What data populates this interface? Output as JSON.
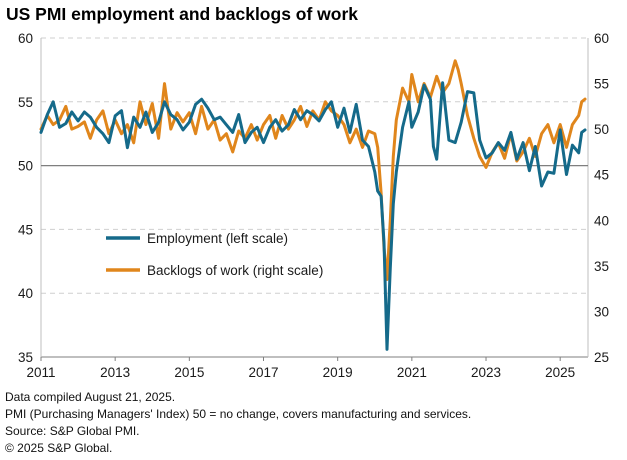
{
  "title": "US PMI employment and backlogs of work",
  "notes": [
    "Data compiled August 21, 2025.",
    "PMI (Purchasing Managers' Index) 50 =  no change, covers manufacturing and services.",
    "Source: S&P Global PMI.",
    "© 2025 S&P Global."
  ],
  "colors": {
    "employment": "#156a8a",
    "backlogs": "#e0861c",
    "grid": "#cfcfcf",
    "refline": "#7f7f7f"
  },
  "chart_data": {
    "type": "line",
    "title": "US PMI employment and backlogs of work",
    "x_ticks": [
      "2011",
      "2013",
      "2015",
      "2017",
      "2019",
      "2021",
      "2023",
      "2025"
    ],
    "xlim": [
      2011.0,
      2025.75
    ],
    "y_left": {
      "min": 35,
      "max": 60,
      "ticks": [
        35,
        40,
        45,
        50,
        55,
        60
      ]
    },
    "y_right": {
      "min": 25,
      "max": 60,
      "ticks": [
        25,
        30,
        35,
        40,
        45,
        50,
        55,
        60
      ]
    },
    "reference_line": {
      "axis": "left",
      "value": 50
    },
    "grid": "horizontal dashed",
    "legend_position": "middle-left",
    "series": [
      {
        "name": "Employment (left scale)",
        "axis": "left",
        "points": [
          [
            2011.0,
            52.6
          ],
          [
            2011.17,
            54.0
          ],
          [
            2011.33,
            55.0
          ],
          [
            2011.5,
            53.0
          ],
          [
            2011.67,
            53.3
          ],
          [
            2011.83,
            54.2
          ],
          [
            2012.0,
            53.5
          ],
          [
            2012.17,
            54.2
          ],
          [
            2012.33,
            53.8
          ],
          [
            2012.5,
            53.0
          ],
          [
            2012.67,
            52.5
          ],
          [
            2012.83,
            51.8
          ],
          [
            2013.0,
            53.9
          ],
          [
            2013.17,
            54.3
          ],
          [
            2013.33,
            51.4
          ],
          [
            2013.5,
            53.8
          ],
          [
            2013.67,
            53.0
          ],
          [
            2013.83,
            54.2
          ],
          [
            2014.0,
            52.6
          ],
          [
            2014.17,
            53.4
          ],
          [
            2014.33,
            55.0
          ],
          [
            2014.5,
            54.0
          ],
          [
            2014.67,
            53.6
          ],
          [
            2014.83,
            52.8
          ],
          [
            2015.0,
            53.4
          ],
          [
            2015.17,
            54.8
          ],
          [
            2015.33,
            55.2
          ],
          [
            2015.5,
            54.5
          ],
          [
            2015.67,
            53.6
          ],
          [
            2015.83,
            53.8
          ],
          [
            2016.0,
            53.2
          ],
          [
            2016.17,
            52.6
          ],
          [
            2016.33,
            54.0
          ],
          [
            2016.5,
            51.8
          ],
          [
            2016.67,
            52.6
          ],
          [
            2016.83,
            53.0
          ],
          [
            2017.0,
            51.8
          ],
          [
            2017.17,
            53.0
          ],
          [
            2017.33,
            53.6
          ],
          [
            2017.5,
            52.7
          ],
          [
            2017.67,
            53.2
          ],
          [
            2017.83,
            54.4
          ],
          [
            2018.0,
            53.6
          ],
          [
            2018.17,
            54.3
          ],
          [
            2018.33,
            54.0
          ],
          [
            2018.5,
            53.5
          ],
          [
            2018.67,
            54.4
          ],
          [
            2018.83,
            55.0
          ],
          [
            2019.0,
            53.0
          ],
          [
            2019.17,
            54.5
          ],
          [
            2019.33,
            52.6
          ],
          [
            2019.5,
            54.8
          ],
          [
            2019.67,
            52.0
          ],
          [
            2019.83,
            51.5
          ],
          [
            2020.0,
            49.5
          ],
          [
            2020.08,
            48.0
          ],
          [
            2020.17,
            47.6
          ],
          [
            2020.25,
            44.0
          ],
          [
            2020.33,
            35.6
          ],
          [
            2020.42,
            42.0
          ],
          [
            2020.5,
            47.0
          ],
          [
            2020.58,
            49.5
          ],
          [
            2020.75,
            53.0
          ],
          [
            2020.92,
            55.0
          ],
          [
            2021.0,
            53.0
          ],
          [
            2021.17,
            54.2
          ],
          [
            2021.33,
            56.3
          ],
          [
            2021.5,
            55.2
          ],
          [
            2021.58,
            51.5
          ],
          [
            2021.67,
            50.5
          ],
          [
            2021.83,
            56.5
          ],
          [
            2022.0,
            52.0
          ],
          [
            2022.17,
            51.8
          ],
          [
            2022.33,
            53.4
          ],
          [
            2022.5,
            55.8
          ],
          [
            2022.67,
            55.7
          ],
          [
            2022.83,
            52.0
          ],
          [
            2023.0,
            50.6
          ],
          [
            2023.17,
            51.0
          ],
          [
            2023.33,
            51.8
          ],
          [
            2023.5,
            51.2
          ],
          [
            2023.67,
            52.6
          ],
          [
            2023.83,
            50.5
          ],
          [
            2024.0,
            51.8
          ],
          [
            2024.17,
            49.6
          ],
          [
            2024.33,
            51.5
          ],
          [
            2024.5,
            48.4
          ],
          [
            2024.67,
            49.5
          ],
          [
            2024.83,
            49.4
          ],
          [
            2025.0,
            52.8
          ],
          [
            2025.17,
            49.3
          ],
          [
            2025.33,
            51.6
          ],
          [
            2025.5,
            51.0
          ],
          [
            2025.58,
            52.6
          ],
          [
            2025.67,
            52.8
          ]
        ]
      },
      {
        "name": "Backlogs of work (right scale)",
        "axis": "right",
        "points": [
          [
            2011.0,
            50.0
          ],
          [
            2011.17,
            51.5
          ],
          [
            2011.33,
            50.5
          ],
          [
            2011.5,
            51.0
          ],
          [
            2011.67,
            52.5
          ],
          [
            2011.83,
            50.0
          ],
          [
            2012.0,
            50.3
          ],
          [
            2012.17,
            50.8
          ],
          [
            2012.33,
            49.0
          ],
          [
            2012.5,
            51.0
          ],
          [
            2012.67,
            52.0
          ],
          [
            2012.83,
            49.5
          ],
          [
            2013.0,
            51.0
          ],
          [
            2013.17,
            49.5
          ],
          [
            2013.33,
            50.5
          ],
          [
            2013.5,
            48.5
          ],
          [
            2013.67,
            53.0
          ],
          [
            2013.83,
            50.5
          ],
          [
            2014.0,
            52.8
          ],
          [
            2014.17,
            49.0
          ],
          [
            2014.33,
            55.0
          ],
          [
            2014.5,
            50.0
          ],
          [
            2014.67,
            51.8
          ],
          [
            2014.83,
            50.8
          ],
          [
            2015.0,
            51.8
          ],
          [
            2015.17,
            49.5
          ],
          [
            2015.33,
            52.5
          ],
          [
            2015.5,
            50.0
          ],
          [
            2015.67,
            51.0
          ],
          [
            2015.83,
            48.8
          ],
          [
            2016.0,
            49.5
          ],
          [
            2016.17,
            47.5
          ],
          [
            2016.33,
            49.8
          ],
          [
            2016.5,
            49.0
          ],
          [
            2016.67,
            50.5
          ],
          [
            2016.83,
            48.8
          ],
          [
            2017.0,
            50.5
          ],
          [
            2017.17,
            51.5
          ],
          [
            2017.33,
            49.0
          ],
          [
            2017.5,
            51.5
          ],
          [
            2017.67,
            50.0
          ],
          [
            2017.83,
            51.0
          ],
          [
            2018.0,
            52.5
          ],
          [
            2018.17,
            50.3
          ],
          [
            2018.33,
            52.0
          ],
          [
            2018.5,
            51.0
          ],
          [
            2018.67,
            53.0
          ],
          [
            2018.83,
            52.0
          ],
          [
            2019.0,
            51.5
          ],
          [
            2019.17,
            50.5
          ],
          [
            2019.33,
            48.5
          ],
          [
            2019.5,
            50.0
          ],
          [
            2019.67,
            48.0
          ],
          [
            2019.83,
            49.8
          ],
          [
            2020.0,
            49.5
          ],
          [
            2020.08,
            48.0
          ],
          [
            2020.17,
            43.0
          ],
          [
            2020.25,
            37.0
          ],
          [
            2020.33,
            33.5
          ],
          [
            2020.42,
            40.0
          ],
          [
            2020.5,
            47.0
          ],
          [
            2020.58,
            51.0
          ],
          [
            2020.75,
            54.5
          ],
          [
            2020.92,
            53.0
          ],
          [
            2021.0,
            56.0
          ],
          [
            2021.17,
            53.0
          ],
          [
            2021.33,
            55.0
          ],
          [
            2021.5,
            53.5
          ],
          [
            2021.67,
            55.8
          ],
          [
            2021.83,
            54.0
          ],
          [
            2022.0,
            55.0
          ],
          [
            2022.17,
            57.5
          ],
          [
            2022.25,
            56.5
          ],
          [
            2022.33,
            55.0
          ],
          [
            2022.5,
            51.5
          ],
          [
            2022.67,
            49.0
          ],
          [
            2022.83,
            47.0
          ],
          [
            2023.0,
            45.8
          ],
          [
            2023.17,
            47.5
          ],
          [
            2023.33,
            48.5
          ],
          [
            2023.5,
            46.8
          ],
          [
            2023.67,
            49.5
          ],
          [
            2023.83,
            46.5
          ],
          [
            2024.0,
            47.5
          ],
          [
            2024.17,
            49.0
          ],
          [
            2024.33,
            47.0
          ],
          [
            2024.5,
            49.5
          ],
          [
            2024.67,
            50.5
          ],
          [
            2024.83,
            48.5
          ],
          [
            2025.0,
            50.5
          ],
          [
            2025.17,
            48.0
          ],
          [
            2025.33,
            50.5
          ],
          [
            2025.5,
            51.5
          ],
          [
            2025.58,
            53.0
          ],
          [
            2025.67,
            53.3
          ]
        ]
      }
    ]
  }
}
